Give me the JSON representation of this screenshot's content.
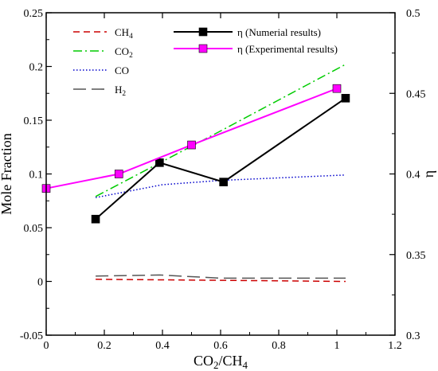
{
  "chart_data": {
    "type": "line",
    "xlabel": {
      "main": "CO",
      "sub": "2",
      "tail": "/CH",
      "sub2": "4"
    },
    "ylabel": "Mole Fraction",
    "y2label": "η",
    "xlim": [
      0,
      1.2
    ],
    "ylim": [
      -0.05,
      0.25
    ],
    "y2lim": [
      0.3,
      0.5
    ],
    "xticks": [
      "0",
      "0.2",
      "0.4",
      "0.6",
      "0.8",
      "1",
      "1.2"
    ],
    "yticks": [
      "-0.05",
      "0",
      "0.05",
      "0.1",
      "0.15",
      "0.2",
      "0.25"
    ],
    "y2ticks": [
      "0.3",
      "0.35",
      "0.4",
      "0.45",
      "0.5"
    ],
    "grid": false,
    "legend_left": [
      {
        "main": "CH",
        "sub": "4",
        "color": "#cc0000",
        "dash": "dashed"
      },
      {
        "main": "CO",
        "sub": "2",
        "color": "#00cc00",
        "dash": "dashdot"
      },
      {
        "main": "CO",
        "sub": "",
        "color": "#0000cc",
        "dash": "dotted"
      },
      {
        "main": "H",
        "sub": "2",
        "color": "#555555",
        "dash": "longdash"
      }
    ],
    "legend_right": [
      {
        "label": "η (Numerial results)",
        "color": "#000000",
        "marker": "square"
      },
      {
        "label": "η (Experimental results)",
        "color": "#ff00ff",
        "marker": "square"
      }
    ],
    "series": [
      {
        "axis": "left",
        "color": "#cc0000",
        "dash": "dashed",
        "x": [
          0.17,
          0.6,
          1.03
        ],
        "y": [
          0.002,
          0.001,
          0.0
        ]
      },
      {
        "axis": "left",
        "color": "#00cc00",
        "dash": "dashdot",
        "x": [
          0.17,
          0.6,
          1.03
        ],
        "y": [
          0.079,
          0.14,
          0.202
        ]
      },
      {
        "axis": "left",
        "color": "#0000cc",
        "dash": "dotted",
        "x": [
          0.17,
          0.4,
          0.6,
          1.03
        ],
        "y": [
          0.078,
          0.09,
          0.094,
          0.099
        ]
      },
      {
        "axis": "left",
        "color": "#555555",
        "dash": "longdash",
        "x": [
          0.17,
          0.39,
          0.6,
          1.03
        ],
        "y": [
          0.005,
          0.006,
          0.003,
          0.003
        ]
      },
      {
        "axis": "right",
        "color": "#000000",
        "marker": "square",
        "x": [
          0.17,
          0.39,
          0.61,
          1.03
        ],
        "y": [
          0.372,
          0.407,
          0.395,
          0.447
        ]
      },
      {
        "axis": "right",
        "color": "#ff00ff",
        "marker": "square",
        "x": [
          0.0,
          0.25,
          0.5,
          1.0
        ],
        "y": [
          0.391,
          0.4,
          0.418,
          0.453
        ]
      }
    ]
  }
}
